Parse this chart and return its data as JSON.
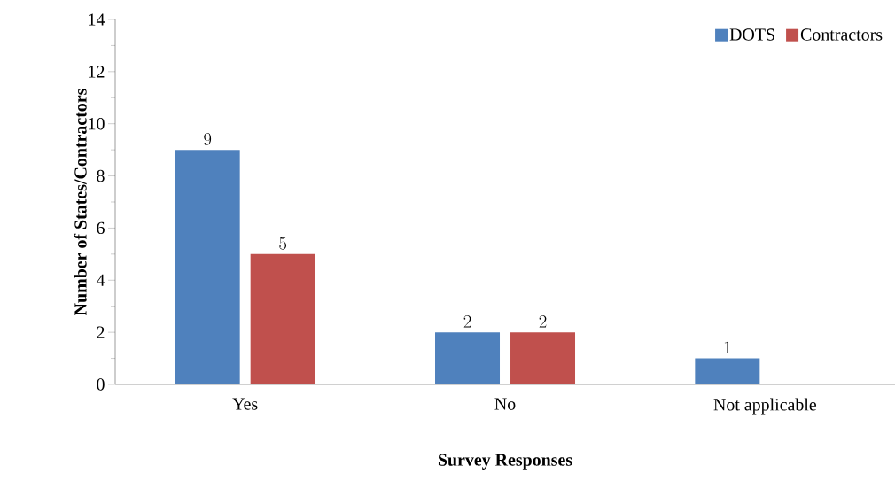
{
  "chart_data": {
    "type": "bar",
    "xlabel": "Survey Responses",
    "ylabel": "Number of States/Contractors",
    "categories": [
      "Yes",
      "No",
      "Not applicable"
    ],
    "series": [
      {
        "name": "DOTS",
        "color": "#4f81bd",
        "values": [
          9,
          2,
          1
        ]
      },
      {
        "name": "Contractors",
        "color": "#c0504d",
        "values": [
          5,
          2,
          null
        ]
      }
    ],
    "ylim": [
      0,
      14
    ],
    "yticks": [
      0,
      2,
      4,
      6,
      8,
      10,
      12,
      14
    ],
    "data_labels": true,
    "legend": "top right",
    "grid": false
  }
}
